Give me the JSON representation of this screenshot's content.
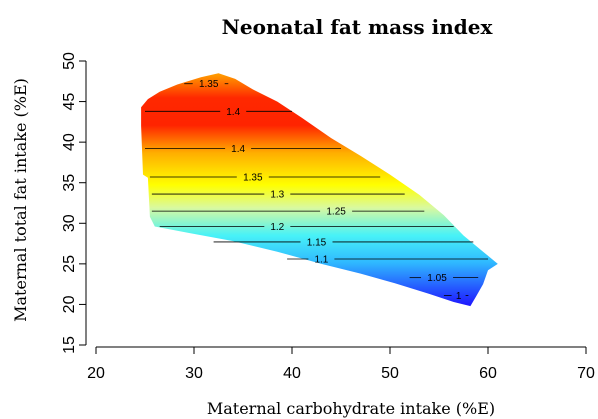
{
  "chart_data": {
    "type": "heatmap",
    "title": "Neonatal fat mass index",
    "xlabel": "Maternal carbohydrate intake (%E)",
    "ylabel": "Maternal total fat intake (%E)",
    "xlim": [
      20,
      70
    ],
    "ylim": [
      15,
      50
    ],
    "x_ticks": [
      "20",
      "30",
      "40",
      "50",
      "60",
      "70"
    ],
    "y_ticks": [
      "15",
      "20",
      "25",
      "30",
      "35",
      "40",
      "45",
      "50"
    ],
    "grid": false,
    "color_scale": {
      "low": "#0000ff",
      "stops": [
        "#0000ff",
        "#00ffff",
        "#ffff00",
        "#ff9900",
        "#ff0000"
      ],
      "high": "#ff0000"
    },
    "region_outline": [
      [
        24.6,
        44.3
      ],
      [
        25.3,
        45.3
      ],
      [
        26.5,
        46.2
      ],
      [
        28.3,
        47.1
      ],
      [
        30.7,
        48.0
      ],
      [
        32.5,
        48.5
      ],
      [
        34.2,
        47.8
      ],
      [
        36.0,
        46.5
      ],
      [
        38.5,
        45.0
      ],
      [
        41.0,
        43.0
      ],
      [
        44.0,
        40.5
      ],
      [
        47.0,
        38.3
      ],
      [
        50.0,
        36.0
      ],
      [
        53.0,
        33.5
      ],
      [
        55.5,
        31.0
      ],
      [
        57.5,
        28.5
      ],
      [
        59.5,
        26.5
      ],
      [
        61.0,
        25.0
      ],
      [
        60.0,
        24.2
      ],
      [
        59.5,
        22.5
      ],
      [
        58.8,
        21.0
      ],
      [
        58.2,
        19.8
      ],
      [
        56.5,
        20.3
      ],
      [
        54.0,
        21.3
      ],
      [
        50.5,
        22.6
      ],
      [
        47.0,
        23.8
      ],
      [
        43.0,
        25.0
      ],
      [
        38.5,
        26.5
      ],
      [
        34.0,
        27.8
      ],
      [
        29.5,
        28.8
      ],
      [
        26.0,
        29.6
      ],
      [
        25.5,
        30.8
      ],
      [
        25.3,
        35.6
      ],
      [
        24.8,
        36.0
      ],
      [
        24.6,
        42.0
      ]
    ],
    "contours": [
      {
        "label": "1.35",
        "value": 1.35,
        "x": [
          29.0,
          33.5
        ],
        "y": 47.2,
        "label_x": 31.5
      },
      {
        "label": "1.4",
        "value": 1.4,
        "x": [
          25.0,
          40.0
        ],
        "y": 43.8,
        "label_x": 34.0
      },
      {
        "label": "1.4",
        "value": 1.4,
        "x": [
          25.0,
          45.0
        ],
        "y": 39.2,
        "label_x": 34.5
      },
      {
        "label": "1.35",
        "value": 1.35,
        "x": [
          25.5,
          49.0
        ],
        "y": 35.7,
        "label_x": 36.0
      },
      {
        "label": "1.3",
        "value": 1.3,
        "x": [
          25.7,
          51.5
        ],
        "y": 33.6,
        "label_x": 38.5
      },
      {
        "label": "1.25",
        "value": 1.25,
        "x": [
          25.7,
          53.5
        ],
        "y": 31.5,
        "label_x": 44.5
      },
      {
        "label": "1.2",
        "value": 1.2,
        "x": [
          26.5,
          56.5
        ],
        "y": 29.6,
        "label_x": 38.5
      },
      {
        "label": "1.15",
        "value": 1.15,
        "x": [
          32.0,
          58.5
        ],
        "y": 27.7,
        "label_x": 42.5
      },
      {
        "label": "1.1",
        "value": 1.1,
        "x": [
          39.5,
          60.0
        ],
        "y": 25.6,
        "label_x": 43.0
      },
      {
        "label": "1.05",
        "value": 1.05,
        "x": [
          52.0,
          59.0
        ],
        "y": 23.3,
        "label_x": 54.8
      },
      {
        "label": "1",
        "value": 1.0,
        "x": [
          55.5,
          58.0
        ],
        "y": 21.1,
        "label_x": 57.0
      }
    ]
  }
}
